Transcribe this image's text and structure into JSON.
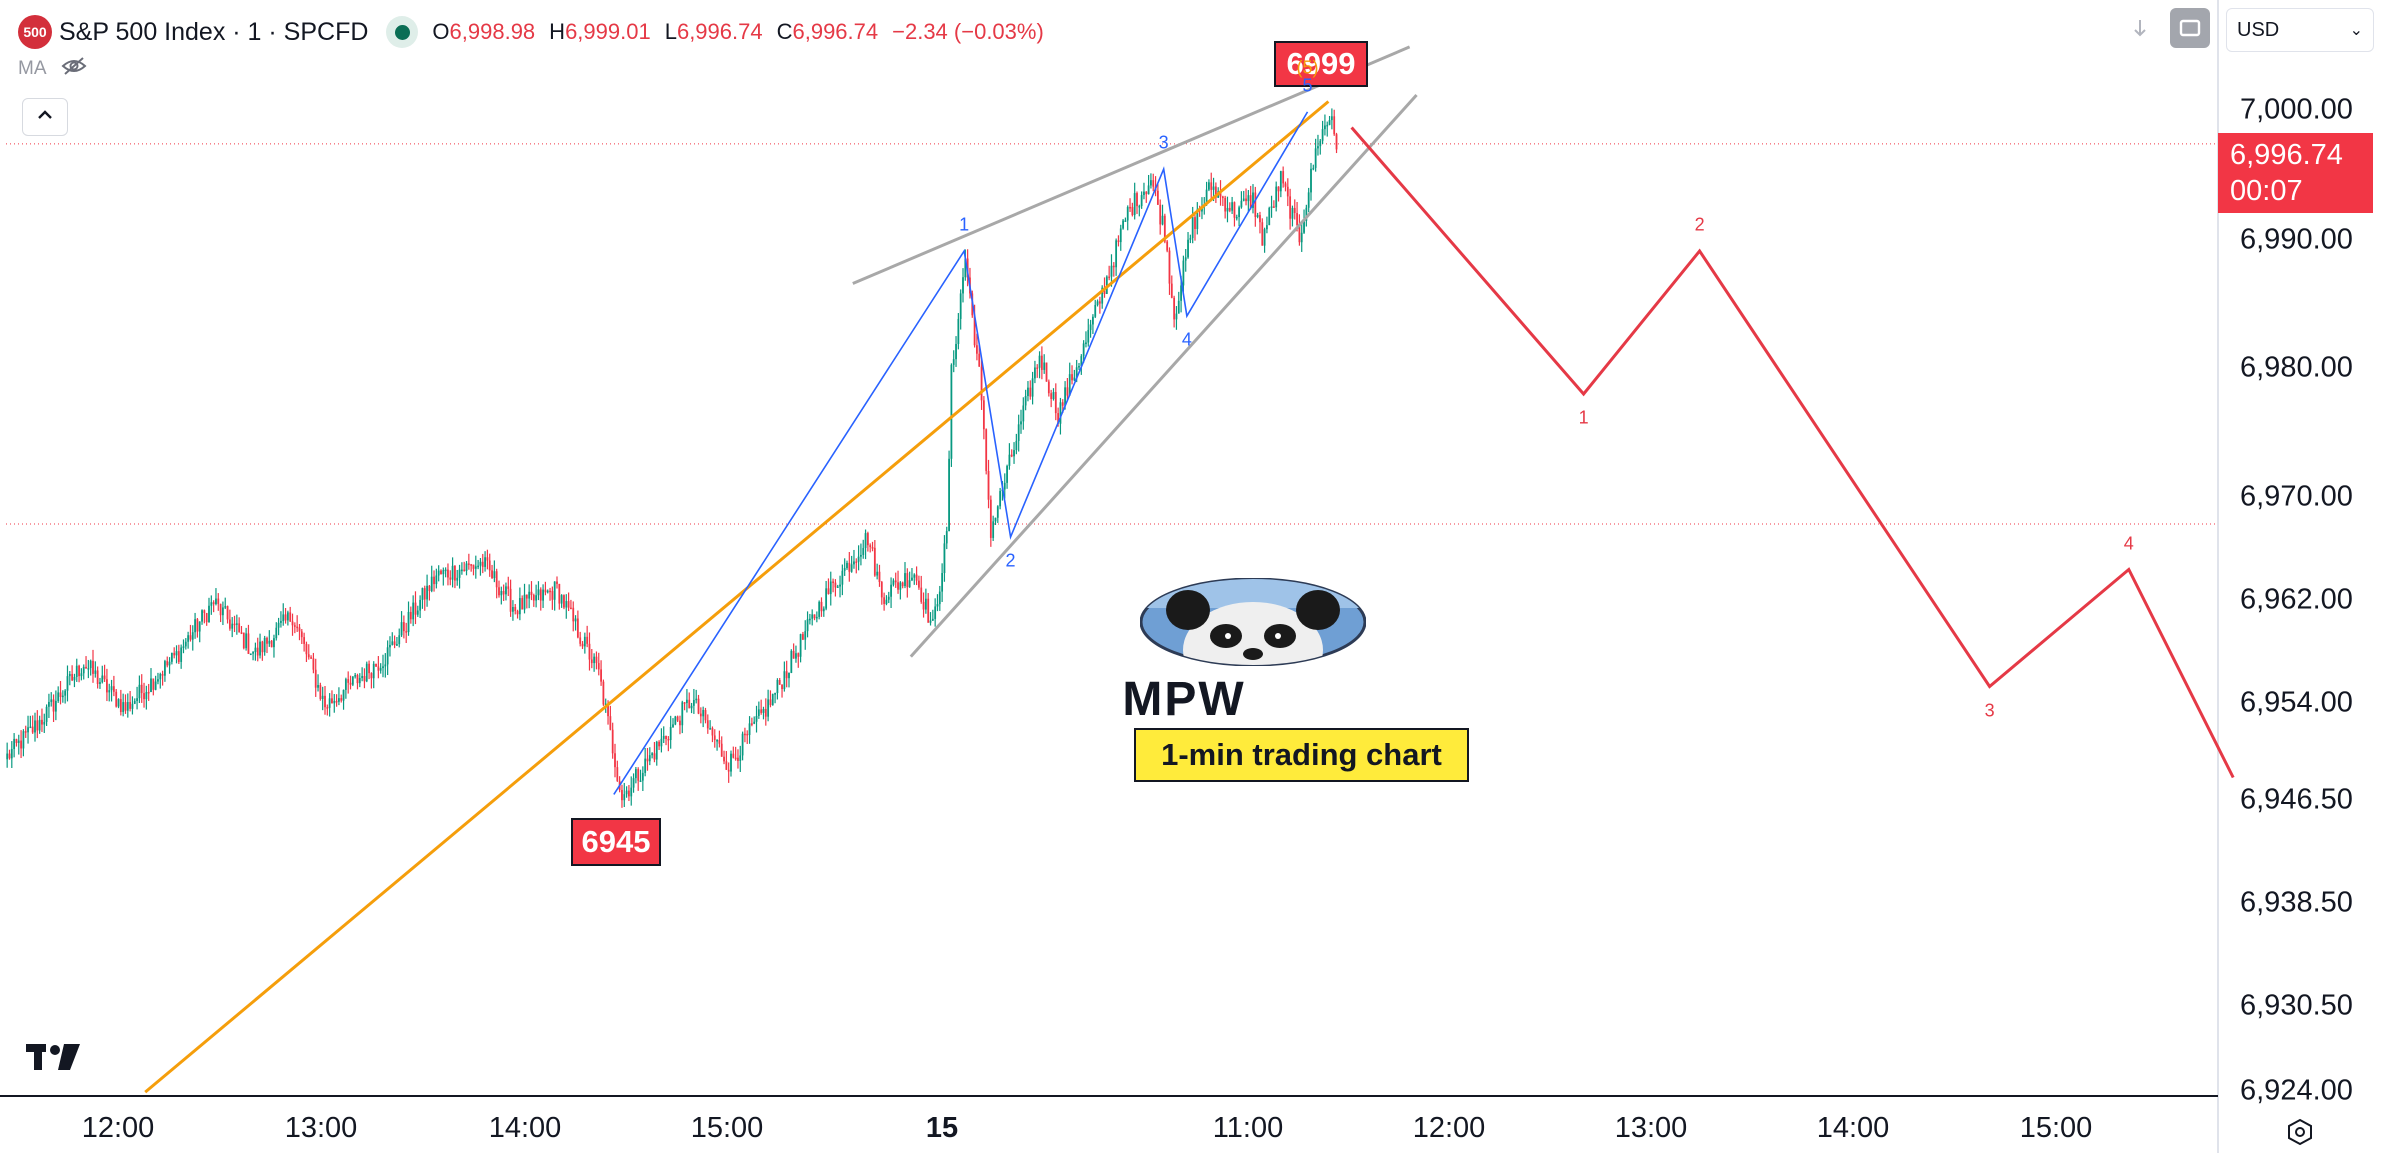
{
  "header": {
    "symbol_badge": "500",
    "title": "S&P 500 Index · 1 · SPCFD",
    "market_status_color": "#0b6e55",
    "open_key": "O",
    "open": "6,998.98",
    "high_key": "H",
    "high": "6,999.01",
    "low_key": "L",
    "low": "6,996.74",
    "close_key": "C",
    "close": "6,996.74",
    "change": "−2.34 (−0.03%)"
  },
  "indicator_row": {
    "label": "MA",
    "visibility_icon": "eye-off-icon"
  },
  "toolbar": {
    "collapse_icon": "chevron-up-icon",
    "download_icon": "arrow-down-icon",
    "fullscreen_icon": "square-icon"
  },
  "currency": {
    "label": "USD",
    "chevron": "⌄"
  },
  "price_tag": {
    "price": "6,996.74",
    "countdown": "00:07"
  },
  "levels": {
    "high_box": "6999",
    "low_box": "6945"
  },
  "branding": {
    "mpw": "MPW",
    "caption": "1-min trading chart",
    "tv_logo": "17"
  },
  "colors": {
    "candle_up": "#089981",
    "candle_down": "#f23645",
    "fib_line": "#f59e0b",
    "wave_blue": "#2962ff",
    "wave_red": "#e53946",
    "channel": "#a8a8a8"
  },
  "chart_data": {
    "type": "candlestick",
    "title": "S&P 500 Index · 1 · SPCFD",
    "y_ticks": [
      "7,000.00",
      "6,990.00",
      "6,980.00",
      "6,970.00",
      "6,962.00",
      "6,954.00",
      "6,946.50",
      "6,938.50",
      "6,930.50",
      "6,924.00"
    ],
    "x_ticks": [
      {
        "label": "12:00",
        "bold": false
      },
      {
        "label": "13:00",
        "bold": false
      },
      {
        "label": "14:00",
        "bold": false
      },
      {
        "label": "15:00",
        "bold": false
      },
      {
        "label": "15",
        "bold": true
      },
      {
        "label": "11:00",
        "bold": false
      },
      {
        "label": "12:00",
        "bold": false
      },
      {
        "label": "13:00",
        "bold": false
      },
      {
        "label": "14:00",
        "bold": false
      },
      {
        "label": "15:00",
        "bold": false
      }
    ],
    "ylim": [
      6923.5,
      7006
    ],
    "last_price": 6996.74,
    "prev_close_line": 6967.5,
    "segments": [
      {
        "t0": 0,
        "t1": 16,
        "p0": 6949.4,
        "p1": 6952.5
      },
      {
        "t0": 16,
        "t1": 34,
        "p0": 6952.5,
        "p1": 6956.8
      },
      {
        "t0": 34,
        "t1": 52,
        "p0": 6956.8,
        "p1": 6953.3
      },
      {
        "t0": 52,
        "t1": 74,
        "p0": 6953.3,
        "p1": 6957.4
      },
      {
        "t0": 74,
        "t1": 90,
        "p0": 6957.4,
        "p1": 6961.5
      },
      {
        "t0": 90,
        "t1": 108,
        "p0": 6961.5,
        "p1": 6957.5
      },
      {
        "t0": 108,
        "t1": 124,
        "p0": 6957.5,
        "p1": 6960.5
      },
      {
        "t0": 124,
        "t1": 138,
        "p0": 6960.5,
        "p1": 6953.5
      },
      {
        "t0": 138,
        "t1": 164,
        "p0": 6953.5,
        "p1": 6957.3
      },
      {
        "t0": 164,
        "t1": 186,
        "p0": 6957.3,
        "p1": 6963.5
      },
      {
        "t0": 186,
        "t1": 206,
        "p0": 6963.5,
        "p1": 6964.5
      },
      {
        "t0": 206,
        "t1": 220,
        "p0": 6964.5,
        "p1": 6961.0
      },
      {
        "t0": 220,
        "t1": 238,
        "p0": 6961.0,
        "p1": 6962.5
      },
      {
        "t0": 238,
        "t1": 256,
        "p0": 6962.5,
        "p1": 6956.0
      },
      {
        "t0": 256,
        "t1": 266,
        "p0": 6956.0,
        "p1": 6946.5
      },
      {
        "t0": 266,
        "t1": 284,
        "p0": 6946.5,
        "p1": 6951.0
      },
      {
        "t0": 284,
        "t1": 296,
        "p0": 6951.0,
        "p1": 6954.0
      },
      {
        "t0": 296,
        "t1": 312,
        "p0": 6954.0,
        "p1": 6949.0
      },
      {
        "t0": 312,
        "t1": 330,
        "p0": 6949.0,
        "p1": 6953.8
      },
      {
        "t0": 330,
        "t1": 352,
        "p0": 6953.8,
        "p1": 6961.5
      },
      {
        "t0": 352,
        "t1": 372,
        "p0": 6961.5,
        "p1": 6966.5
      },
      {
        "t0": 372,
        "t1": 378,
        "p0": 6966.5,
        "p1": 6962.0
      },
      {
        "t0": 378,
        "t1": 392,
        "p0": 6962.0,
        "p1": 6963.8
      },
      {
        "t0": 392,
        "t1": 400,
        "p0": 6963.8,
        "p1": 6959.5
      },
      {
        "t0": 400,
        "t1": 406,
        "p0": 6959.5,
        "p1": 6966.5
      },
      {
        "t0": 406,
        "t1": 408,
        "p0": 6966.5,
        "p1": 6979.0
      },
      {
        "t0": 408,
        "t1": 414,
        "p0": 6979.0,
        "p1": 6988.0
      },
      {
        "t0": 414,
        "t1": 420,
        "p0": 6988.0,
        "p1": 6979.0
      },
      {
        "t0": 420,
        "t1": 425,
        "p0": 6979.0,
        "p1": 6967.0
      },
      {
        "t0": 425,
        "t1": 436,
        "p0": 6967.0,
        "p1": 6974.0
      },
      {
        "t0": 436,
        "t1": 446,
        "p0": 6974.0,
        "p1": 6980.5
      },
      {
        "t0": 446,
        "t1": 454,
        "p0": 6980.5,
        "p1": 6976.0
      },
      {
        "t0": 454,
        "t1": 466,
        "p0": 6976.0,
        "p1": 6981.5
      },
      {
        "t0": 466,
        "t1": 478,
        "p0": 6981.5,
        "p1": 6988.0
      },
      {
        "t0": 478,
        "t1": 484,
        "p0": 6988.0,
        "p1": 6991.5
      },
      {
        "t0": 484,
        "t1": 494,
        "p0": 6991.5,
        "p1": 6994.0
      },
      {
        "t0": 494,
        "t1": 500,
        "p0": 6994.0,
        "p1": 6990.0
      },
      {
        "t0": 500,
        "t1": 504,
        "p0": 6990.0,
        "p1": 6983.5
      },
      {
        "t0": 504,
        "t1": 512,
        "p0": 6983.5,
        "p1": 6990.5
      },
      {
        "t0": 512,
        "t1": 520,
        "p0": 6990.5,
        "p1": 6993.5
      },
      {
        "t0": 520,
        "t1": 530,
        "p0": 6993.5,
        "p1": 6991.5
      },
      {
        "t0": 530,
        "t1": 538,
        "p0": 6991.5,
        "p1": 6992.5
      },
      {
        "t0": 538,
        "t1": 542,
        "p0": 6992.5,
        "p1": 6989.5
      },
      {
        "t0": 542,
        "t1": 550,
        "p0": 6989.5,
        "p1": 6994.0
      },
      {
        "t0": 550,
        "t1": 558,
        "p0": 6994.0,
        "p1": 6989.5
      },
      {
        "t0": 558,
        "t1": 566,
        "p0": 6989.5,
        "p1": 6997.0
      },
      {
        "t0": 566,
        "t1": 572,
        "p0": 6997.0,
        "p1": 6999.0
      },
      {
        "t0": 572,
        "t1": 574,
        "p0": 6999.0,
        "p1": 6996.7
      }
    ],
    "fib_line": {
      "t0": 60,
      "p0": 6923.8,
      "t1": 570,
      "p1": 7000.0
    },
    "channel_upper": {
      "t0": 365,
      "p0": 6986.0,
      "t1": 605,
      "p1": 7004.2
    },
    "channel_lower": {
      "t0": 390,
      "p0": 6957.3,
      "t1": 608,
      "p1": 7000.5
    },
    "wave_path": [
      {
        "t": 262,
        "p": 6946.7,
        "label": "",
        "dy": 0
      },
      {
        "t": 413,
        "p": 6988.5,
        "label": "1",
        "dy": -26
      },
      {
        "t": 433,
        "p": 6966.5,
        "label": "2",
        "dy": 24
      },
      {
        "t": 499,
        "p": 6994.8,
        "label": "3",
        "dy": -26
      },
      {
        "t": 509,
        "p": 6983.5,
        "label": "4",
        "dy": 24
      },
      {
        "t": 561,
        "p": 6999.2,
        "label": "5",
        "dy": -26
      }
    ],
    "wave_5_circled": "(5)",
    "projection": [
      {
        "t": 580,
        "p": 6998.0,
        "label": "",
        "dy": 0
      },
      {
        "t": 680,
        "p": 6977.5,
        "label": "1",
        "dy": 24
      },
      {
        "t": 730,
        "p": 6988.5,
        "label": "2",
        "dy": -26
      },
      {
        "t": 855,
        "p": 6955.0,
        "label": "3",
        "dy": 24
      },
      {
        "t": 915,
        "p": 6964.0,
        "label": "4",
        "dy": -26
      },
      {
        "t": 960,
        "p": 6948.0,
        "label": "",
        "dy": 0
      }
    ]
  }
}
